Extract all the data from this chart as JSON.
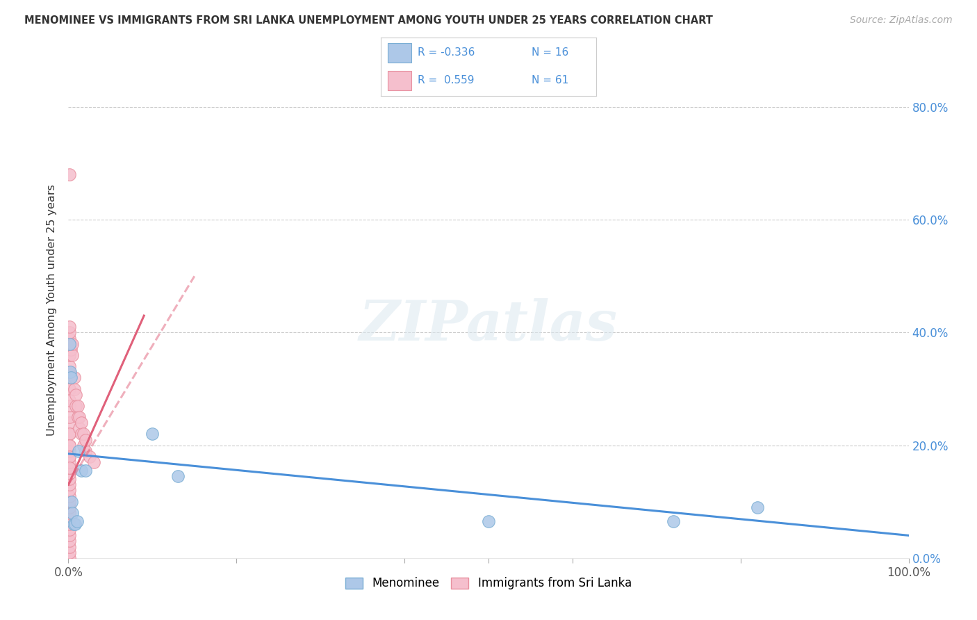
{
  "title": "MENOMINEE VS IMMIGRANTS FROM SRI LANKA UNEMPLOYMENT AMONG YOUTH UNDER 25 YEARS CORRELATION CHART",
  "source": "Source: ZipAtlas.com",
  "ylabel": "Unemployment Among Youth under 25 years",
  "background_color": "#ffffff",
  "watermark_text": "ZIPatlas",
  "menominee_color": "#adc8e8",
  "menominee_edge": "#7aaed4",
  "srilanka_color": "#f5bfcd",
  "srilanka_edge": "#e8909f",
  "trendline_blue": "#4a90d9",
  "trendline_pink": "#e0607a",
  "xlim": [
    0.0,
    1.0
  ],
  "ylim": [
    0.0,
    0.88
  ],
  "ytick_vals": [
    0.0,
    0.2,
    0.4,
    0.6,
    0.8
  ],
  "menominee_x": [
    0.001,
    0.002,
    0.003,
    0.004,
    0.005,
    0.006,
    0.008,
    0.01,
    0.012,
    0.015,
    0.02,
    0.1,
    0.13,
    0.5,
    0.72,
    0.82
  ],
  "menominee_y": [
    0.38,
    0.33,
    0.32,
    0.1,
    0.08,
    0.06,
    0.06,
    0.065,
    0.19,
    0.155,
    0.155,
    0.22,
    0.145,
    0.065,
    0.065,
    0.09
  ],
  "srilanka_x": [
    0.001,
    0.001,
    0.001,
    0.001,
    0.001,
    0.001,
    0.001,
    0.001,
    0.001,
    0.001,
    0.001,
    0.001,
    0.001,
    0.001,
    0.001,
    0.001,
    0.001,
    0.001,
    0.001,
    0.001,
    0.001,
    0.001,
    0.001,
    0.001,
    0.001,
    0.001,
    0.001,
    0.001,
    0.001,
    0.001,
    0.001,
    0.001,
    0.001,
    0.001,
    0.001,
    0.001,
    0.001,
    0.001,
    0.001,
    0.001,
    0.003,
    0.003,
    0.005,
    0.005,
    0.007,
    0.007,
    0.009,
    0.009,
    0.011,
    0.011,
    0.013,
    0.013,
    0.015,
    0.015,
    0.018,
    0.018,
    0.02,
    0.02,
    0.025,
    0.03,
    0.001
  ],
  "srilanka_y": [
    0.0,
    0.01,
    0.02,
    0.03,
    0.04,
    0.05,
    0.06,
    0.07,
    0.08,
    0.09,
    0.1,
    0.11,
    0.12,
    0.13,
    0.14,
    0.15,
    0.16,
    0.17,
    0.18,
    0.19,
    0.2,
    0.22,
    0.24,
    0.27,
    0.3,
    0.32,
    0.33,
    0.34,
    0.36,
    0.38,
    0.39,
    0.4,
    0.41,
    0.3,
    0.28,
    0.25,
    0.22,
    0.2,
    0.18,
    0.16,
    0.37,
    0.38,
    0.36,
    0.38,
    0.3,
    0.32,
    0.27,
    0.29,
    0.25,
    0.27,
    0.23,
    0.25,
    0.22,
    0.24,
    0.2,
    0.22,
    0.19,
    0.21,
    0.18,
    0.17,
    0.68
  ],
  "trendline_men_x0": 0.0,
  "trendline_men_y0": 0.185,
  "trendline_men_x1": 1.0,
  "trendline_men_y1": 0.04,
  "trendline_srl_x0": 0.0,
  "trendline_srl_y0": 0.13,
  "trendline_srl_x1": 0.15,
  "trendline_srl_y1": 0.5
}
